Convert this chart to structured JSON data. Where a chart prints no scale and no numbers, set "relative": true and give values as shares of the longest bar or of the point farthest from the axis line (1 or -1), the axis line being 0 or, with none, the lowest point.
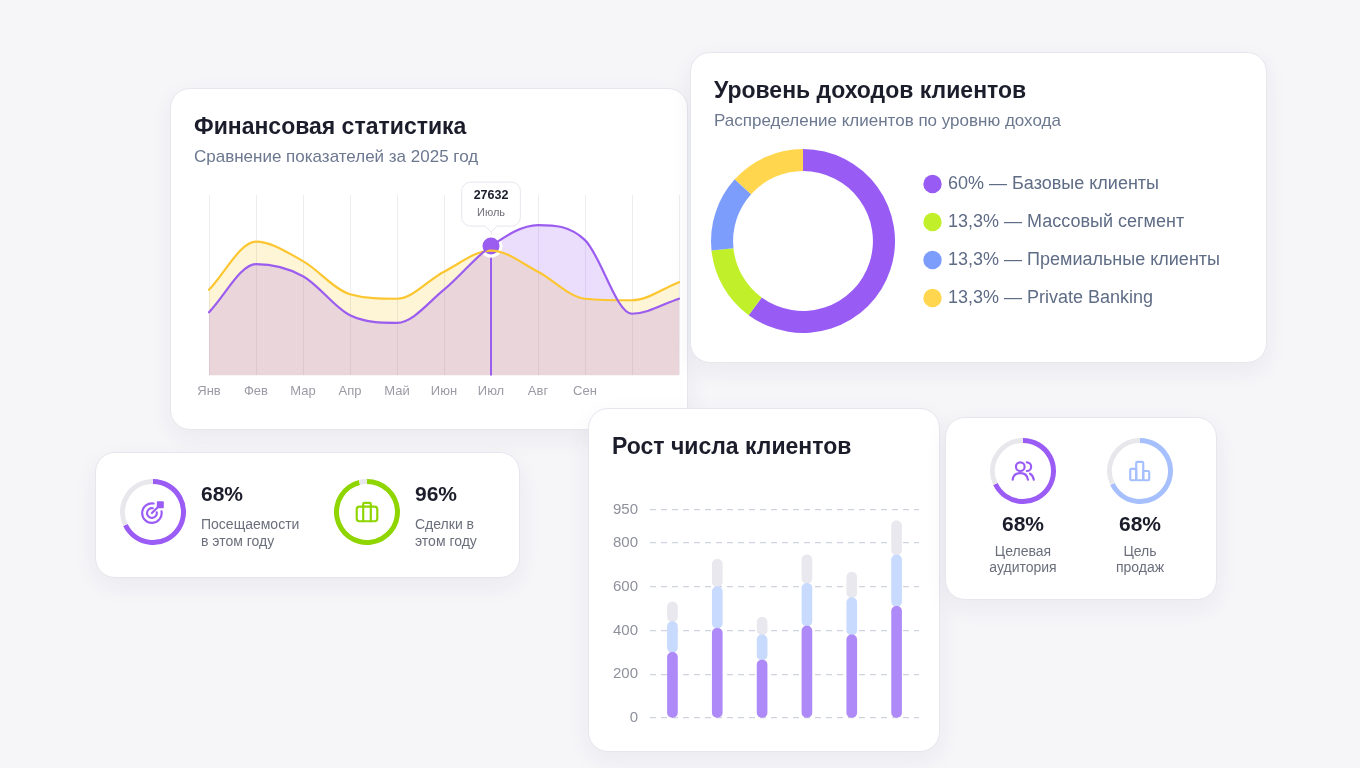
{
  "chart_data": [
    {
      "type": "area",
      "title": "Финансовая статистика",
      "subtitle": "Сравнение показателей за 2025 год",
      "categories": [
        "Янв",
        "Фев",
        "Мар",
        "Апр",
        "Май",
        "Июн",
        "Июл",
        "Авг",
        "Сен",
        null,
        null
      ],
      "relative": true,
      "series": [
        {
          "color": "#fcc630",
          "values": [
            0.57,
            0.89,
            0.76,
            0.54,
            0.51,
            0.69,
            0.83,
            0.69,
            0.51,
            0.5,
            0.62
          ]
        },
        {
          "color": "#9b5cf0",
          "values": [
            0.42,
            0.74,
            0.66,
            0.4,
            0.35,
            0.57,
            0.86,
            1.0,
            0.9,
            0.41,
            0.51
          ]
        }
      ],
      "grid": "x",
      "marker": "none",
      "ref_lines": [
        {
          "axis": "x",
          "value": "Июл",
          "color": "#9b5cf0"
        }
      ],
      "annotations": [
        {
          "text": "27632\nИюль",
          "x": "Июл",
          "y": 0.86
        }
      ]
    },
    {
      "type": "donut",
      "title": "Уровень доходов клиентов",
      "subtitle": "Распределение клиентов по уровню дохода",
      "categories": [
        "60% — Базовые клиенты",
        "13,3% — Массовый сегмент",
        "13,3% — Премиальные клиенты",
        "13,3% — Private Banking"
      ],
      "values": [
        60,
        13.3,
        13.3,
        13.3
      ],
      "colors": [
        "#985cf5",
        "#c1f02b",
        "#7d9dfd",
        "#ffd64d"
      ],
      "legend": "right"
    },
    {
      "type": "donut",
      "categories": [
        "Посещаемости\nв этом году",
        null
      ],
      "values": [
        68,
        32
      ],
      "colors": [
        "#9b5cf6",
        "#e8e8ec"
      ],
      "value_labels": [
        "68%",
        null
      ]
    },
    {
      "type": "donut",
      "categories": [
        "Сделки в\nэтом году",
        null
      ],
      "values": [
        96,
        4
      ],
      "colors": [
        "#8fd500",
        "#e8e8ec"
      ],
      "value_labels": [
        "96%",
        null
      ]
    },
    {
      "type": "bar",
      "title": "Рост числа клиентов",
      "categories": [
        null,
        null,
        null,
        null,
        null,
        null
      ],
      "stacked": true,
      "series": [
        {
          "color": "#ae8af8",
          "values": [
            300,
            410,
            265,
            420,
            380,
            510
          ]
        },
        {
          "color": "#c8dafd",
          "values": [
            140,
            190,
            115,
            195,
            170,
            235
          ]
        },
        {
          "color": "#e8e8ee",
          "values": [
            90,
            125,
            80,
            130,
            115,
            155
          ]
        }
      ],
      "ylim": [
        0,
        950
      ],
      "yticks": [
        0,
        200,
        400,
        600,
        800,
        950
      ],
      "grid": "y"
    },
    {
      "type": "donut",
      "categories": [
        "Целевая\nаудитория",
        null
      ],
      "values": [
        68,
        32
      ],
      "colors": [
        "#9b5cf6",
        "#e8e8ec"
      ],
      "value_labels": [
        "68%",
        null
      ]
    },
    {
      "type": "donut",
      "categories": [
        "Цель\nпродаж",
        null
      ],
      "values": [
        68,
        32
      ],
      "colors": [
        "#a6bffd",
        "#e8e8ec"
      ],
      "value_labels": [
        "68%",
        null
      ]
    }
  ]
}
